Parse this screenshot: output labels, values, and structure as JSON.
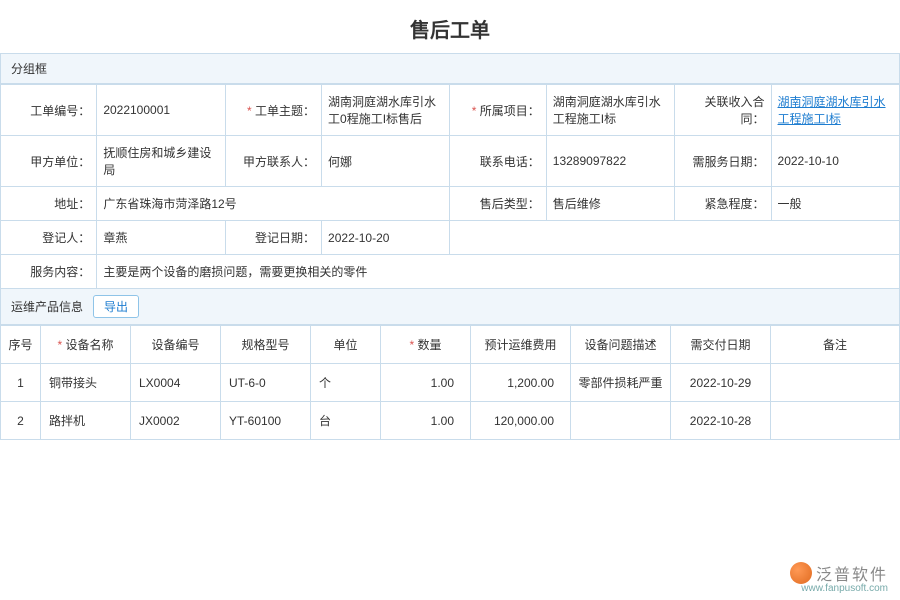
{
  "title": "售后工单",
  "section_group": "分组框",
  "form": {
    "r1": {
      "order_no_label": "工单编号：",
      "order_no": "2022100001",
      "subject_label": "工单主题：",
      "subject": "湖南洞庭湖水库引水工0程施工I标售后",
      "project_label": "所属项目：",
      "project": "湖南洞庭湖水库引水工程施工I标",
      "contract_label": "关联收入合同：",
      "contract": "湖南洞庭湖水库引水工程施工I标"
    },
    "r2": {
      "party_label": "甲方单位：",
      "party": "抚顺住房和城乡建设局",
      "contact_label": "甲方联系人：",
      "contact": "何娜",
      "phone_label": "联系电话：",
      "phone": "13289097822",
      "service_date_label": "需服务日期：",
      "service_date": "2022-10-10"
    },
    "r3": {
      "addr_label": "地址：",
      "addr": "广东省珠海市菏泽路12号",
      "type_label": "售后类型：",
      "type": "售后维修",
      "urgency_label": "紧急程度：",
      "urgency": "一般"
    },
    "r4": {
      "registrant_label": "登记人：",
      "registrant": "章燕",
      "reg_date_label": "登记日期：",
      "reg_date": "2022-10-20"
    },
    "r5": {
      "content_label": "服务内容：",
      "content": "主要是两个设备的磨损问题，需要更换相关的零件"
    }
  },
  "product_section": {
    "title": "运维产品信息",
    "export": "导出"
  },
  "table": {
    "headers": {
      "seq": "序号",
      "name": "设备名称",
      "code": "设备编号",
      "spec": "规格型号",
      "unit": "单位",
      "qty": "数量",
      "cost": "预计运维费用",
      "desc": "设备问题描述",
      "deliver": "需交付日期",
      "remark": "备注"
    },
    "rows": [
      {
        "seq": "1",
        "name": "铜带接头",
        "code": "LX0004",
        "spec": "UT-6-0",
        "unit": "个",
        "qty": "1.00",
        "cost": "1,200.00",
        "desc": "零部件损耗严重",
        "deliver": "2022-10-29",
        "remark": ""
      },
      {
        "seq": "2",
        "name": "路拌机",
        "code": "JX0002",
        "spec": "YT-60100",
        "unit": "台",
        "qty": "1.00",
        "cost": "120,000.00",
        "desc": "",
        "deliver": "2022-10-28",
        "remark": ""
      }
    ]
  },
  "footer": {
    "brand": "泛普软件",
    "url": "www.fanpusoft.com"
  }
}
